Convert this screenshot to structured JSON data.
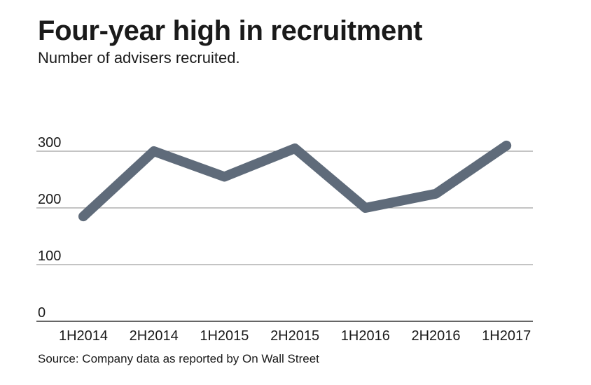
{
  "header": {
    "title": "Four-year high in recruitment",
    "subtitle": "Number of advisers recruited."
  },
  "footer": {
    "source": "Source: Company data as reported by On Wall Street"
  },
  "colors": {
    "line": "#5f6b7a",
    "grid": "#8a8a8a",
    "baseline": "#333333"
  },
  "chart_data": {
    "type": "line",
    "title": "Four-year high in recruitment",
    "subtitle": "Number of advisers recruited.",
    "xlabel": "",
    "ylabel": "",
    "categories": [
      "1H2014",
      "2H2014",
      "1H2015",
      "2H2015",
      "1H2016",
      "2H2016",
      "1H2017"
    ],
    "series": [
      {
        "values": [
          185,
          300,
          255,
          305,
          200,
          225,
          310
        ]
      }
    ],
    "yticks": [
      0,
      100,
      200,
      300
    ],
    "ylim": [
      0,
      300
    ],
    "grid": true,
    "legend": "none"
  }
}
